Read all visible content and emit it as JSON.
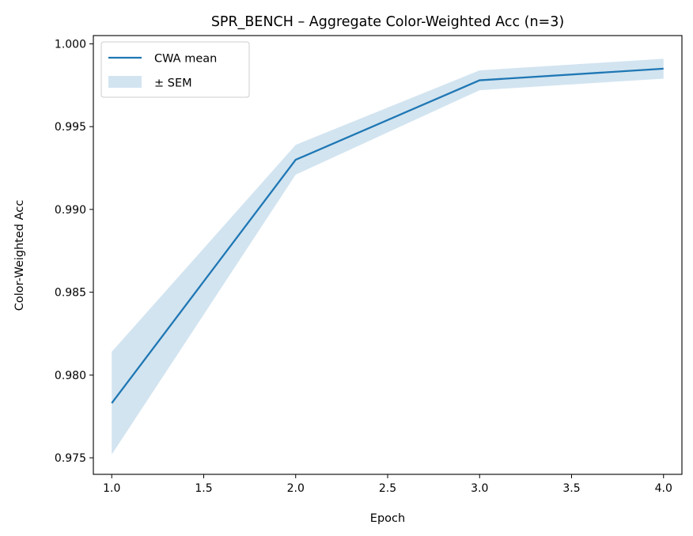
{
  "chart_data": {
    "type": "line",
    "title": "SPR_BENCH – Aggregate Color-Weighted Acc (n=3)",
    "xlabel": "Epoch",
    "ylabel": "Color-Weighted Acc",
    "xlim": [
      0.9,
      4.1
    ],
    "ylim": [
      0.974,
      1.0005
    ],
    "xticks": [
      1.0,
      1.5,
      2.0,
      2.5,
      3.0,
      3.5,
      4.0
    ],
    "xtick_labels": [
      "1.0",
      "1.5",
      "2.0",
      "2.5",
      "3.0",
      "3.5",
      "4.0"
    ],
    "yticks": [
      0.975,
      0.98,
      0.985,
      0.99,
      0.995,
      1.0
    ],
    "ytick_labels": [
      "0.975",
      "0.980",
      "0.985",
      "0.990",
      "0.995",
      "1.000"
    ],
    "grid": false,
    "legend_position": "top-left",
    "series": [
      {
        "name": "CWA mean",
        "kind": "line",
        "color": "#1f77b4",
        "x": [
          1.0,
          2.0,
          3.0,
          4.0
        ],
        "y": [
          0.9783,
          0.993,
          0.9978,
          0.9985
        ]
      },
      {
        "name": "± SEM",
        "kind": "band",
        "color": "#1f77b4",
        "opacity": 0.2,
        "x": [
          1.0,
          2.0,
          3.0,
          4.0
        ],
        "lower": [
          0.9752,
          0.9921,
          0.9972,
          0.9979
        ],
        "upper": [
          0.9814,
          0.9939,
          0.9984,
          0.9991
        ]
      }
    ]
  }
}
